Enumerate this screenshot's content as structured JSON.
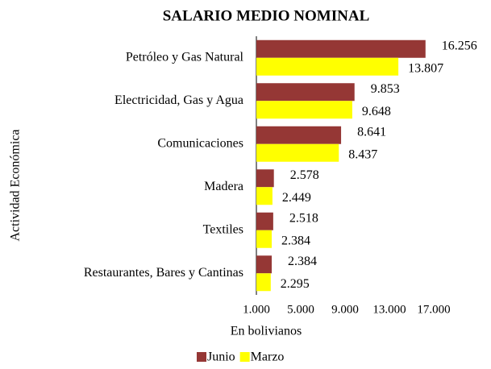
{
  "chart_data": {
    "type": "bar",
    "orientation": "horizontal",
    "title": "SALARIO MEDIO NOMINAL",
    "x_label": "En bolivianos",
    "y_label": "Actividad Económica",
    "categories": [
      "Petróleo y Gas Natural",
      "Electricidad, Gas y Agua",
      "Comunicaciones",
      "Madera",
      "Textiles",
      "Restaurantes, Bares y Cantinas"
    ],
    "series": [
      {
        "name": "Junio",
        "color": "#953735",
        "values": [
          16256,
          9853,
          8641,
          2578,
          2518,
          2384
        ],
        "value_labels": [
          "16.256",
          "9.853",
          "8.641",
          "2.578",
          "2.518",
          "2.384"
        ]
      },
      {
        "name": "Marzo",
        "color": "#ffff00",
        "values": [
          13807,
          9648,
          8437,
          2449,
          2384,
          2295
        ],
        "value_labels": [
          "13.807",
          "9.648",
          "8.437",
          "2.449",
          "2.384",
          "2.295"
        ]
      }
    ],
    "xlim": [
      1000,
      17000
    ],
    "xticks": [
      {
        "value": 1000,
        "label": "1.000"
      },
      {
        "value": 5000,
        "label": "5.000"
      },
      {
        "value": 9000,
        "label": "9.000"
      },
      {
        "value": 13000,
        "label": "13.000"
      },
      {
        "value": 17000,
        "label": "17.000"
      }
    ],
    "legend": "bottom"
  }
}
